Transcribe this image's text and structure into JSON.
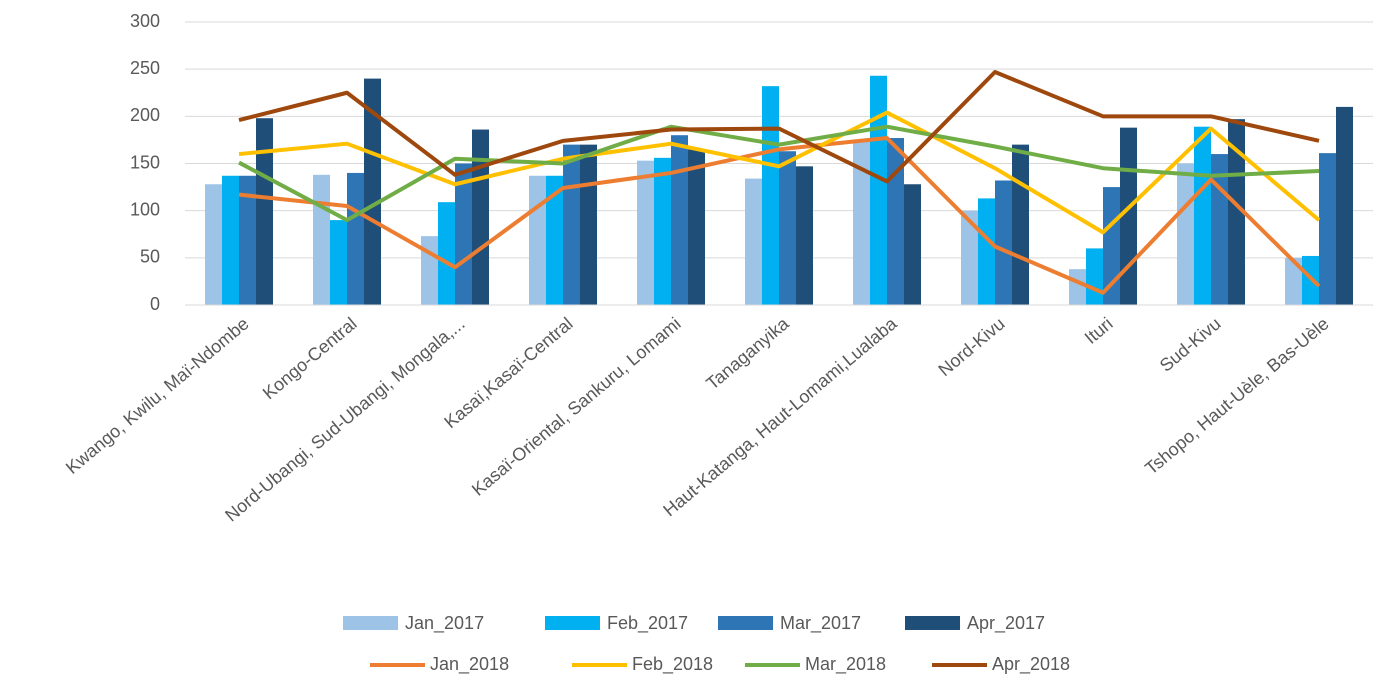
{
  "chart_data": {
    "type": "combo",
    "categories": [
      "Kwango, Kwilu, Maï-Ndombe",
      "Kongo-Central",
      "Nord-Ubangi, Sud-Ubangi, Mongala,...",
      "Kasaï,Kasaï-Central",
      "Kasaï-Oriental, Sankuru, Lomami",
      "Tanaganyika",
      "Haut-Katanga, Haut-Lomami,Lualaba",
      "Nord-Kivu",
      "Ituri",
      "Sud-Kivu",
      "Tshopo, Haut-Uèle, Bas-Uèle"
    ],
    "series": [
      {
        "name": "Jan_2017",
        "type": "bar",
        "color": "#9dc3e6",
        "values": [
          128,
          138,
          73,
          137,
          153,
          134,
          175,
          100,
          38,
          150,
          50
        ]
      },
      {
        "name": "Feb_2017",
        "type": "bar",
        "color": "#00b0f0",
        "values": [
          137,
          90,
          109,
          137,
          156,
          232,
          243,
          113,
          60,
          189,
          52
        ]
      },
      {
        "name": "Mar_2017",
        "type": "bar",
        "color": "#2e75b6",
        "values": [
          137,
          140,
          150,
          170,
          180,
          163,
          177,
          132,
          125,
          160,
          161
        ]
      },
      {
        "name": "Apr_2017",
        "type": "bar",
        "color": "#1f4e79",
        "values": [
          198,
          240,
          186,
          170,
          165,
          147,
          128,
          170,
          188,
          197,
          210
        ]
      },
      {
        "name": "Jan_2018",
        "type": "line",
        "color": "#ed7d31",
        "values": [
          117,
          105,
          40,
          124,
          140,
          165,
          177,
          62,
          13,
          133,
          20
        ]
      },
      {
        "name": "Feb_2018",
        "type": "line",
        "color": "#ffc000",
        "values": [
          160,
          171,
          128,
          155,
          171,
          147,
          204,
          145,
          77,
          187,
          90
        ]
      },
      {
        "name": "Mar_2018",
        "type": "line",
        "color": "#70ad47",
        "values": [
          151,
          90,
          155,
          150,
          189,
          170,
          189,
          168,
          145,
          137,
          142
        ]
      },
      {
        "name": "Apr_2018",
        "type": "line",
        "color": "#9e480e",
        "values": [
          196,
          225,
          138,
          174,
          186,
          187,
          131,
          247,
          200,
          200,
          174
        ]
      }
    ],
    "ylim": [
      0,
      300
    ],
    "yticks": [
      0,
      50,
      100,
      150,
      200,
      250,
      300
    ],
    "grid": true,
    "legend": "bottom"
  }
}
